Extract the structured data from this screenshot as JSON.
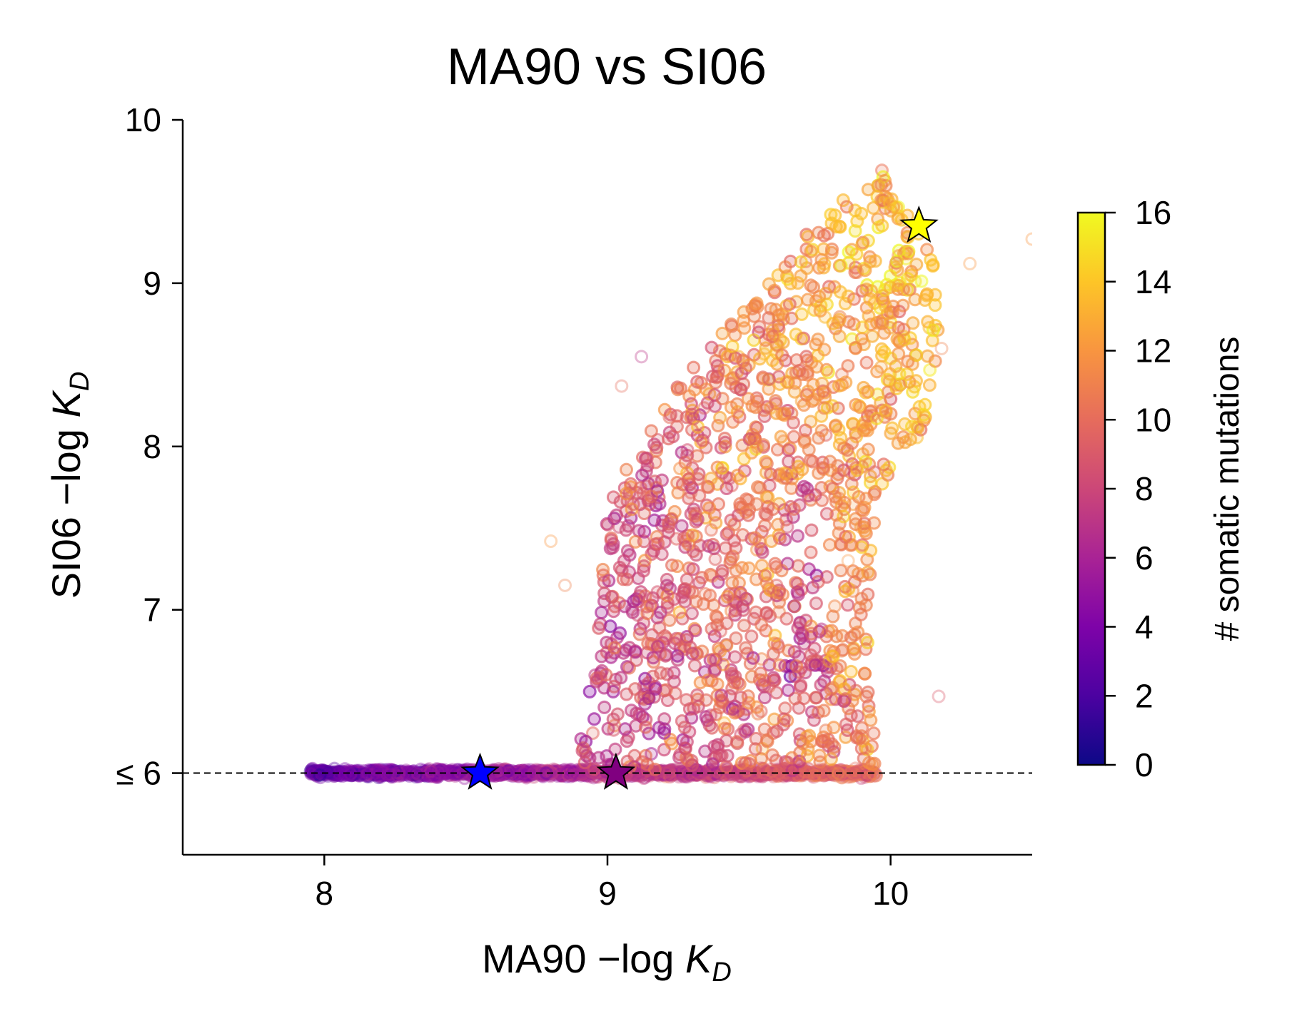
{
  "chart_data": {
    "type": "scatter",
    "title": "MA90 vs SI06",
    "xlabel": {
      "prefix": "MA90 −log ",
      "var": "K",
      "sub": "D"
    },
    "ylabel": {
      "prefix": "SI06 −log ",
      "var": "K",
      "sub": "D"
    },
    "xlim": [
      7.5,
      10.5
    ],
    "ylim": [
      5.5,
      10.0
    ],
    "xticks": [
      {
        "value": 8,
        "label": "8"
      },
      {
        "value": 9,
        "label": "9"
      },
      {
        "value": 10,
        "label": "10"
      }
    ],
    "yticks": [
      {
        "value": 6,
        "label": "≤ 6"
      },
      {
        "value": 7,
        "label": "7"
      },
      {
        "value": 8,
        "label": "8"
      },
      {
        "value": 9,
        "label": "9"
      },
      {
        "value": 10,
        "label": "10"
      }
    ],
    "reference_line": {
      "y": 6.0,
      "style": "dashed",
      "color": "#000000"
    },
    "colorbar": {
      "label": "# somatic mutations",
      "range": [
        0,
        16
      ],
      "colormap": "plasma",
      "ticks": [
        0,
        2,
        4,
        6,
        8,
        10,
        12,
        14,
        16
      ]
    },
    "grid": false,
    "point_cloud": {
      "description_values": "dense cloud of variants; y clipped to 6 for non-binders",
      "baseline_band": {
        "x_range": [
          7.95,
          9.95
        ],
        "y": 6.0,
        "mutations_range": [
          3,
          10
        ]
      },
      "upper_cloud_outline": [
        [
          8.85,
          6.0
        ],
        [
          8.92,
          6.3
        ],
        [
          8.97,
          7.0
        ],
        [
          9.0,
          7.6
        ],
        [
          9.08,
          7.95
        ],
        [
          9.2,
          8.25
        ],
        [
          9.3,
          8.5
        ],
        [
          9.4,
          8.7
        ],
        [
          9.55,
          8.95
        ],
        [
          9.7,
          9.3
        ],
        [
          9.85,
          9.55
        ],
        [
          9.97,
          9.72
        ],
        [
          10.05,
          9.5
        ],
        [
          10.15,
          9.2
        ],
        [
          10.18,
          8.6
        ],
        [
          10.12,
          8.1
        ],
        [
          9.95,
          7.7
        ],
        [
          9.92,
          7.0
        ],
        [
          9.95,
          6.0
        ]
      ]
    },
    "highlighted_points": [
      {
        "x": 8.55,
        "y": 6.0,
        "color": "#0000ff",
        "marker": "star"
      },
      {
        "x": 9.03,
        "y": 6.0,
        "color": "#800080",
        "marker": "star"
      },
      {
        "x": 10.1,
        "y": 9.35,
        "color": "#ffff00",
        "marker": "star"
      }
    ]
  }
}
